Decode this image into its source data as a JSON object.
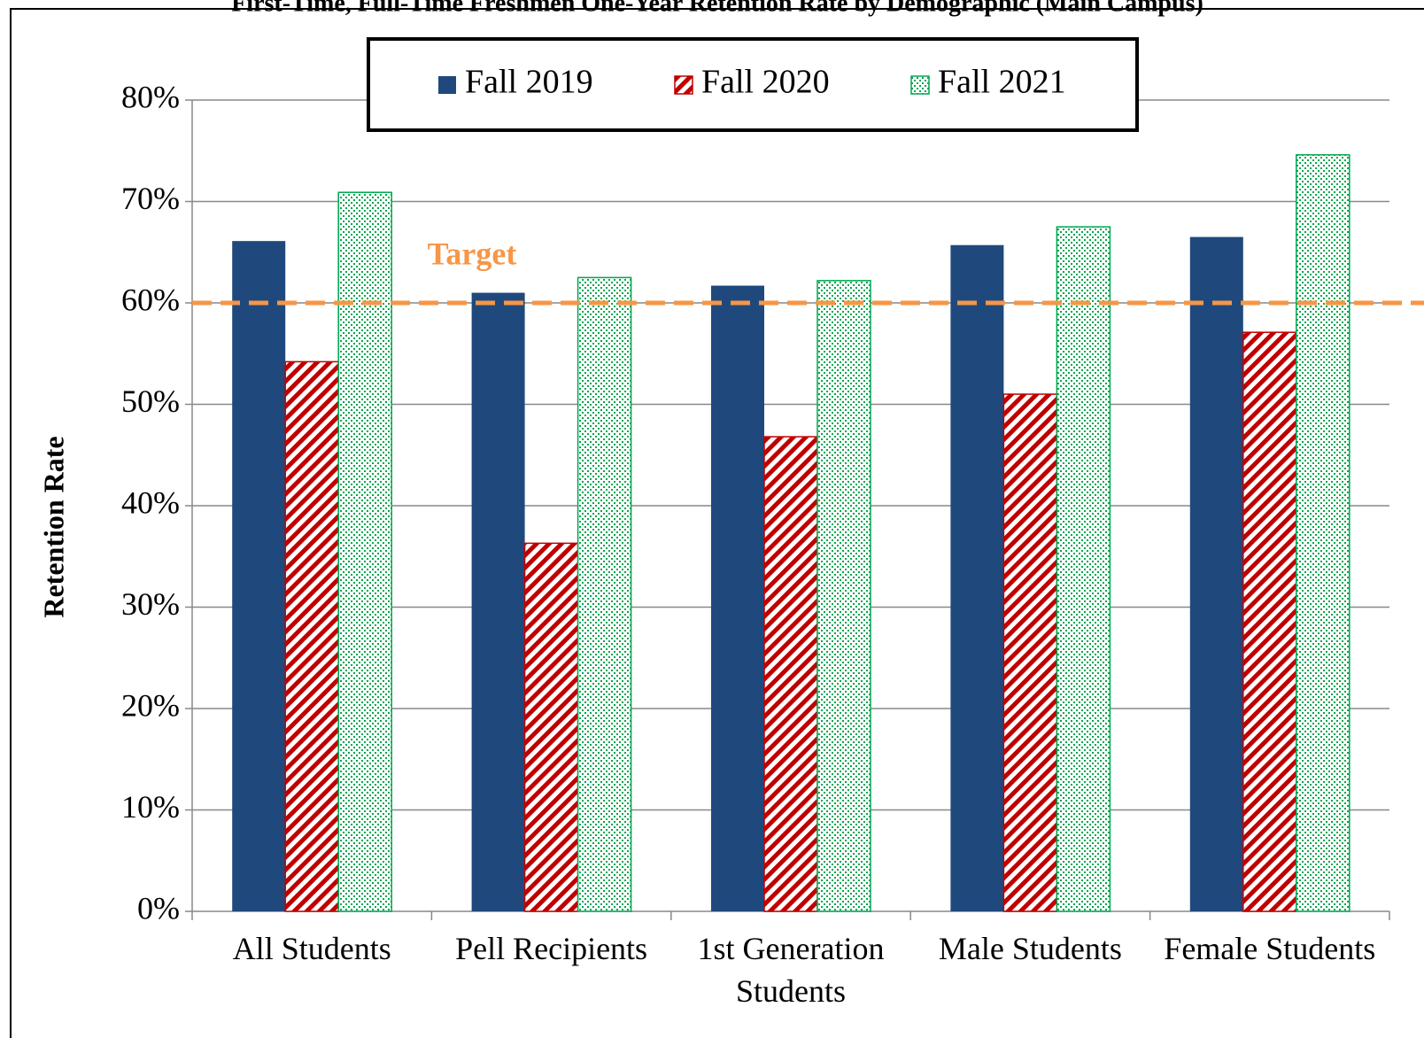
{
  "chart_data": {
    "type": "bar",
    "title": "First-Time, Full-Time Freshmen One-Year Retention Rate by Demographic (Main Campus)",
    "y_label": "Retention Rate",
    "categories": [
      "All Students",
      "Pell Recipients",
      "1st Generation Students",
      "Male Students",
      "Female Students"
    ],
    "series": [
      {
        "name": "Fall 2019",
        "color": "#1f497d",
        "pattern": "solid",
        "values": [
          66.1,
          61.0,
          61.7,
          65.7,
          66.5
        ]
      },
      {
        "name": "Fall 2020",
        "color": "#c00000",
        "pattern": "stripes",
        "values": [
          54.2,
          36.3,
          46.8,
          51.0,
          57.1
        ]
      },
      {
        "name": "Fall 2021",
        "color": "#00a650",
        "pattern": "dots",
        "values": [
          70.9,
          62.5,
          62.2,
          67.5,
          74.6
        ]
      }
    ],
    "target": {
      "label": "Target",
      "value": 60,
      "color": "#f79646"
    },
    "ylim": [
      0,
      80
    ],
    "yticks": [
      {
        "value": 0,
        "label": "0%"
      },
      {
        "value": 10,
        "label": "10%"
      },
      {
        "value": 20,
        "label": "20%"
      },
      {
        "value": 30,
        "label": "30%"
      },
      {
        "value": 40,
        "label": "40%"
      },
      {
        "value": 50,
        "label": "50%"
      },
      {
        "value": 60,
        "label": "60%"
      },
      {
        "value": 70,
        "label": "70%"
      },
      {
        "value": 80,
        "label": "80%"
      }
    ],
    "grid": true,
    "legend": "top"
  }
}
